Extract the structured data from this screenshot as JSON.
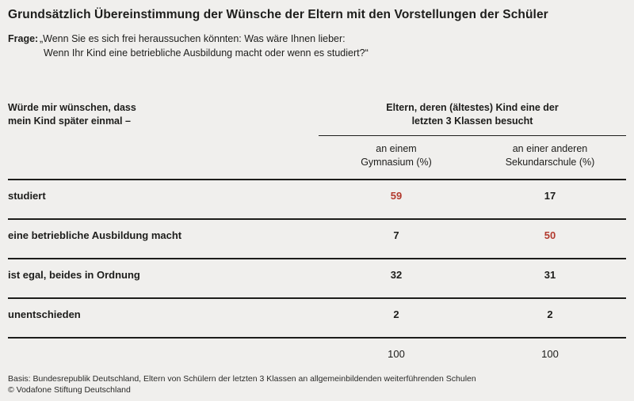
{
  "title": "Grundsätzlich Übereinstimmung der Wünsche der Eltern mit den Vorstellungen der Schüler",
  "question": {
    "label": "Frage:",
    "line1": "„Wenn Sie es sich frei heraussuchen könnten: Was wäre Ihnen lieber:",
    "line2": "Wenn Ihr Kind eine betriebliche Ausbildung macht oder wenn es studiert?“"
  },
  "table": {
    "row_header": {
      "line1": "Würde mir wünschen, dass",
      "line2": "mein Kind später einmal –"
    },
    "group_header": {
      "line1": "Eltern, deren (ältestes) Kind eine der",
      "line2": "letzten 3 Klassen besucht"
    },
    "columns": {
      "col1": {
        "line1": "an einem",
        "line2": "Gymnasium (%)"
      },
      "col2": {
        "line1": "an einer anderen",
        "line2": "Sekundarschule (%)"
      }
    },
    "rows": [
      {
        "label": "studiert",
        "col1": "59",
        "col2": "17"
      },
      {
        "label": "eine betriebliche Ausbildung macht",
        "col1": "7",
        "col2": "50"
      },
      {
        "label": "ist egal, beides in Ordnung",
        "col1": "32",
        "col2": "31"
      },
      {
        "label": "unentschieden",
        "col1": "2",
        "col2": "2"
      }
    ],
    "totals": {
      "col1": "100",
      "col2": "100"
    }
  },
  "footer": {
    "basis": "Basis: Bundesrepublik Deutschland, Eltern von Schülern der letzten 3 Klassen an allgemeinbildenden weiterführenden Schulen",
    "copyright": "© Vodafone Stiftung Deutschland"
  },
  "colors": {
    "accent_red": "#b23a2e",
    "background": "#f0efed",
    "line": "#1d1d1b"
  },
  "chart_data": {
    "type": "table",
    "title": "Grundsätzlich Übereinstimmung der Wünsche der Eltern mit den Vorstellungen der Schüler",
    "question": "„Wenn Sie es sich frei heraussuchen könnten: Was wäre Ihnen lieber: Wenn Ihr Kind eine betriebliche Ausbildung macht oder wenn es studiert?“",
    "row_header": "Würde mir wünschen, dass mein Kind später einmal –",
    "column_group": "Eltern, deren (ältestes) Kind eine der letzten 3 Klassen besucht",
    "columns": [
      "an einem Gymnasium (%)",
      "an einer anderen Sekundarschule (%)"
    ],
    "rows": [
      {
        "label": "studiert",
        "values": [
          59,
          17
        ],
        "highlight": [
          true,
          false
        ]
      },
      {
        "label": "eine betriebliche Ausbildung macht",
        "values": [
          7,
          50
        ],
        "highlight": [
          false,
          true
        ]
      },
      {
        "label": "ist egal, beides in Ordnung",
        "values": [
          32,
          31
        ],
        "highlight": [
          false,
          false
        ]
      },
      {
        "label": "unentschieden",
        "values": [
          2,
          2
        ],
        "highlight": [
          false,
          false
        ]
      }
    ],
    "totals": [
      100,
      100
    ],
    "basis": "Basis: Bundesrepublik Deutschland, Eltern von Schülern der letzten 3 Klassen an allgemeinbildenden weiterführenden Schulen",
    "source": "© Vodafone Stiftung Deutschland"
  }
}
